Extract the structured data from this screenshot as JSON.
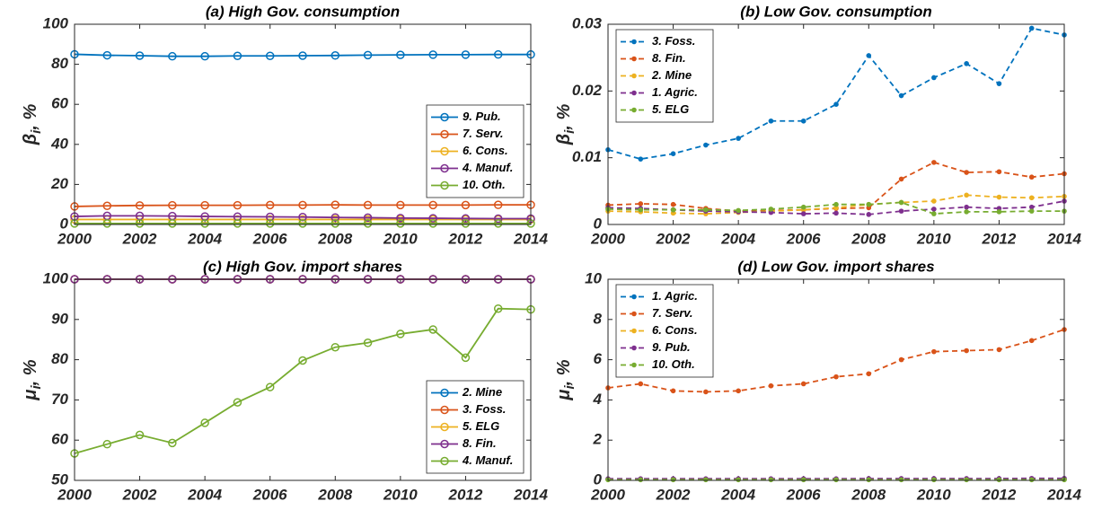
{
  "chart_data": [
    {
      "type": "line",
      "title": "(a) High Gov. consumption",
      "ylabel": [
        "β",
        "i",
        ", %"
      ],
      "x": [
        2000,
        2001,
        2002,
        2003,
        2004,
        2005,
        2006,
        2007,
        2008,
        2009,
        2010,
        2011,
        2012,
        2013,
        2014
      ],
      "xlim": [
        2000,
        2014
      ],
      "xticks": [
        2000,
        2002,
        2004,
        2006,
        2008,
        2010,
        2012,
        2014
      ],
      "ylim": [
        0,
        100
      ],
      "yticks": [
        0,
        20,
        40,
        60,
        80,
        100
      ],
      "line_style": "solid",
      "marker": "open",
      "legend": "east",
      "series": [
        {
          "name": "9. Pub.",
          "color": "#0072BD",
          "values": [
            85,
            84.5,
            84.3,
            84,
            84,
            84.2,
            84.2,
            84.3,
            84.4,
            84.6,
            84.7,
            84.8,
            84.8,
            84.9,
            84.9
          ]
        },
        {
          "name": "7. Serv.",
          "color": "#D95319",
          "values": [
            9,
            9.3,
            9.5,
            9.6,
            9.6,
            9.6,
            9.7,
            9.7,
            9.8,
            9.7,
            9.7,
            9.7,
            9.7,
            9.8,
            9.8
          ]
        },
        {
          "name": "6. Cons.",
          "color": "#EDB120",
          "values": [
            2.5,
            2.5,
            2.5,
            2.5,
            2.5,
            2.5,
            2.5,
            2.5,
            2.5,
            2.5,
            2.5,
            2.5,
            2.5,
            2.5,
            2.5
          ]
        },
        {
          "name": "4. Manuf.",
          "color": "#7E2F8E",
          "values": [
            4,
            4.3,
            4.3,
            4.2,
            4,
            3.9,
            3.8,
            3.7,
            3.5,
            3.4,
            3.2,
            3.1,
            3,
            2.9,
            2.9
          ]
        },
        {
          "name": "10. Oth.",
          "color": "#77AC30",
          "values": [
            0.5,
            0.5,
            0.5,
            0.5,
            0.5,
            0.5,
            0.5,
            0.5,
            0.5,
            0.5,
            0.5,
            0.5,
            0.5,
            0.5,
            0.5
          ]
        }
      ]
    },
    {
      "type": "line",
      "title": "(b) Low Gov. consumption",
      "ylabel": [
        "β",
        "i",
        ", %"
      ],
      "x": [
        2000,
        2001,
        2002,
        2003,
        2004,
        2005,
        2006,
        2007,
        2008,
        2009,
        2010,
        2011,
        2012,
        2013,
        2014
      ],
      "xlim": [
        2000,
        2014
      ],
      "xticks": [
        2000,
        2002,
        2004,
        2006,
        2008,
        2010,
        2012,
        2014
      ],
      "ylim": [
        0,
        0.03
      ],
      "yticks": [
        0,
        0.01,
        0.02,
        0.03
      ],
      "line_style": "dashed",
      "marker": "dot",
      "legend": "northwest",
      "series": [
        {
          "name": "3. Foss.",
          "color": "#0072BD",
          "values": [
            0.0112,
            0.0098,
            0.0106,
            0.0119,
            0.0129,
            0.0155,
            0.0155,
            0.018,
            0.0253,
            0.0193,
            0.022,
            0.0241,
            0.0211,
            0.0294,
            0.0284
          ]
        },
        {
          "name": "8. Fin.",
          "color": "#D95319",
          "values": [
            0.0029,
            0.0031,
            0.003,
            0.0024,
            0.002,
            0.0021,
            0.0022,
            0.0024,
            0.0025,
            0.0068,
            0.0093,
            0.0078,
            0.0079,
            0.0071,
            0.0076
          ]
        },
        {
          "name": "2. Mine",
          "color": "#EDB120",
          "values": [
            0.002,
            0.0019,
            0.0017,
            0.0016,
            0.0018,
            0.002,
            0.0022,
            0.0025,
            0.003,
            0.0033,
            0.0035,
            0.0044,
            0.0041,
            0.004,
            0.0042
          ]
        },
        {
          "name": "1. Agric.",
          "color": "#7E2F8E",
          "values": [
            0.0025,
            0.0024,
            0.0022,
            0.002,
            0.0019,
            0.0018,
            0.0016,
            0.0017,
            0.0015,
            0.002,
            0.0023,
            0.0026,
            0.0024,
            0.0026,
            0.0035
          ]
        },
        {
          "name": "5. ELG",
          "color": "#77AC30",
          "values": [
            0.0023,
            0.0022,
            0.0022,
            0.0022,
            0.0021,
            0.0023,
            0.0026,
            0.003,
            0.003,
            0.0033,
            0.0016,
            0.0019,
            0.0019,
            0.002,
            0.002
          ]
        }
      ]
    },
    {
      "type": "line",
      "title": "(c) High Gov. import shares",
      "ylabel": [
        "μ",
        "i",
        ", %"
      ],
      "x": [
        2000,
        2001,
        2002,
        2003,
        2004,
        2005,
        2006,
        2007,
        2008,
        2009,
        2010,
        2011,
        2012,
        2013,
        2014
      ],
      "xlim": [
        2000,
        2014
      ],
      "xticks": [
        2000,
        2002,
        2004,
        2006,
        2008,
        2010,
        2012,
        2014
      ],
      "ylim": [
        50,
        100
      ],
      "yticks": [
        50,
        60,
        70,
        80,
        90,
        100
      ],
      "line_style": "solid",
      "marker": "open",
      "legend": "southeast",
      "series": [
        {
          "name": "2. Mine",
          "color": "#0072BD",
          "values": [
            100,
            100,
            100,
            100,
            100,
            100,
            100,
            100,
            100,
            100,
            100,
            100,
            100,
            100,
            100
          ]
        },
        {
          "name": "3. Foss.",
          "color": "#D95319",
          "values": [
            100,
            100,
            100,
            100,
            100,
            100,
            100,
            100,
            100,
            100,
            100,
            100,
            100,
            100,
            100
          ]
        },
        {
          "name": "5. ELG",
          "color": "#EDB120",
          "values": [
            100,
            100,
            100,
            100,
            100,
            100,
            100,
            100,
            100,
            100,
            100,
            100,
            100,
            100,
            100
          ]
        },
        {
          "name": "8. Fin.",
          "color": "#7E2F8E",
          "values": [
            100,
            100,
            100,
            100,
            100,
            100,
            100,
            100,
            100,
            100,
            100,
            100,
            100,
            100,
            100
          ]
        },
        {
          "name": "4. Manuf.",
          "color": "#77AC30",
          "values": [
            56.7,
            59,
            61.3,
            59.3,
            64.3,
            69.4,
            73.2,
            79.8,
            83.1,
            84.2,
            86.4,
            87.5,
            80.5,
            92.7,
            92.5
          ]
        }
      ]
    },
    {
      "type": "line",
      "title": "(d) Low Gov. import shares",
      "ylabel": [
        "μ",
        "i",
        ", %"
      ],
      "x": [
        2000,
        2001,
        2002,
        2003,
        2004,
        2005,
        2006,
        2007,
        2008,
        2009,
        2010,
        2011,
        2012,
        2013,
        2014
      ],
      "xlim": [
        2000,
        2014
      ],
      "xticks": [
        2000,
        2002,
        2004,
        2006,
        2008,
        2010,
        2012,
        2014
      ],
      "ylim": [
        0,
        10
      ],
      "yticks": [
        0,
        2,
        4,
        6,
        8,
        10
      ],
      "line_style": "dashed",
      "marker": "dot",
      "legend": "northwest",
      "series": [
        {
          "name": "1. Agric.",
          "color": "#0072BD",
          "values": [
            0.05,
            0.05,
            0.05,
            0.05,
            0.05,
            0.05,
            0.05,
            0.05,
            0.05,
            0.05,
            0.05,
            0.05,
            0.05,
            0.05,
            0.05
          ]
        },
        {
          "name": "7. Serv.",
          "color": "#D95319",
          "values": [
            4.6,
            4.8,
            4.45,
            4.4,
            4.45,
            4.7,
            4.8,
            5.15,
            5.3,
            6,
            6.4,
            6.45,
            6.5,
            6.95,
            7.5
          ]
        },
        {
          "name": "6. Cons.",
          "color": "#EDB120",
          "values": [
            0.05,
            0.05,
            0.05,
            0.05,
            0.05,
            0.05,
            0.05,
            0.05,
            0.05,
            0.05,
            0.05,
            0.05,
            0.05,
            0.05,
            0.05
          ]
        },
        {
          "name": "9. Pub.",
          "color": "#7E2F8E",
          "values": [
            0.08,
            0.08,
            0.08,
            0.08,
            0.08,
            0.08,
            0.08,
            0.08,
            0.09,
            0.09,
            0.09,
            0.09,
            0.09,
            0.1,
            0.1
          ]
        },
        {
          "name": "10. Oth.",
          "color": "#77AC30",
          "values": [
            0.03,
            0.03,
            0.03,
            0.03,
            0.03,
            0.03,
            0.03,
            0.03,
            0.03,
            0.03,
            0.03,
            0.03,
            0.03,
            0.03,
            0.03
          ]
        }
      ]
    }
  ]
}
